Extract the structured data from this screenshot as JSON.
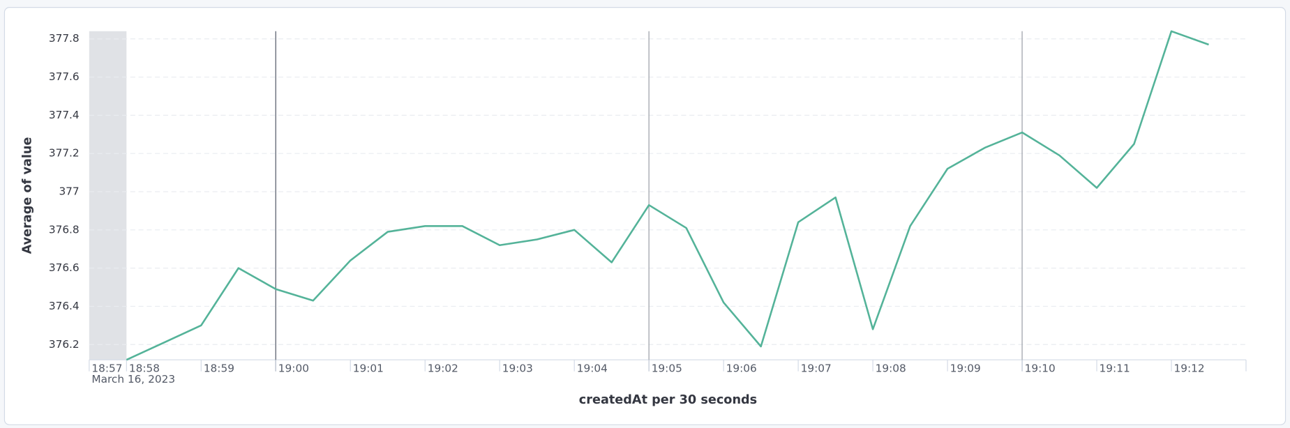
{
  "chart_data": {
    "type": "line",
    "y_label": "Average of value",
    "x_label": "createdAt per 30 seconds",
    "date_label": "March 16, 2023",
    "x": [
      "18:58:00",
      "18:58:30",
      "18:59:00",
      "18:59:30",
      "19:00:00",
      "19:00:30",
      "19:01:00",
      "19:01:30",
      "19:02:00",
      "19:02:30",
      "19:03:00",
      "19:03:30",
      "19:04:00",
      "19:04:30",
      "19:05:00",
      "19:05:30",
      "19:06:00",
      "19:06:30",
      "19:07:00",
      "19:07:30",
      "19:08:00",
      "19:08:30",
      "19:09:00",
      "19:09:30",
      "19:10:00",
      "19:10:30",
      "19:11:00",
      "19:11:30",
      "19:12:00",
      "19:12:30"
    ],
    "series": [
      {
        "name": "Average of value",
        "color": "#54b399",
        "values": [
          376.12,
          376.21,
          376.3,
          376.6,
          376.49,
          376.43,
          376.64,
          376.79,
          376.82,
          376.82,
          376.72,
          376.75,
          376.8,
          376.63,
          376.93,
          376.81,
          376.42,
          376.19,
          376.84,
          376.97,
          376.28,
          376.82,
          377.12,
          377.23,
          377.31,
          377.19,
          377.02,
          377.25,
          377.84,
          377.77
        ]
      }
    ],
    "xlim": [
      "18:57:30",
      "19:13:00"
    ],
    "xticks": [
      {
        "value": "18:57:30",
        "label": "18:57"
      },
      {
        "value": "18:58:00",
        "label": "18:58"
      },
      {
        "value": "18:59:00",
        "label": "18:59"
      },
      {
        "value": "19:00:00",
        "label": "19:00"
      },
      {
        "value": "19:01:00",
        "label": "19:01"
      },
      {
        "value": "19:02:00",
        "label": "19:02"
      },
      {
        "value": "19:03:00",
        "label": "19:03"
      },
      {
        "value": "19:04:00",
        "label": "19:04"
      },
      {
        "value": "19:05:00",
        "label": "19:05"
      },
      {
        "value": "19:06:00",
        "label": "19:06"
      },
      {
        "value": "19:07:00",
        "label": "19:07"
      },
      {
        "value": "19:08:00",
        "label": "19:08"
      },
      {
        "value": "19:09:00",
        "label": "19:09"
      },
      {
        "value": "19:10:00",
        "label": "19:10"
      },
      {
        "value": "19:11:00",
        "label": "19:11"
      },
      {
        "value": "19:12:00",
        "label": "19:12"
      }
    ],
    "major_gridlines": [
      "19:00:00",
      "19:05:00",
      "19:10:00"
    ],
    "partial_bucket": [
      "18:57:30",
      "18:58:00"
    ],
    "ylim": [
      376.12,
      377.84
    ],
    "yticks": [
      376.2,
      376.4,
      376.6,
      376.8,
      377,
      377.2,
      377.4,
      377.6,
      377.8
    ],
    "grid": true
  }
}
